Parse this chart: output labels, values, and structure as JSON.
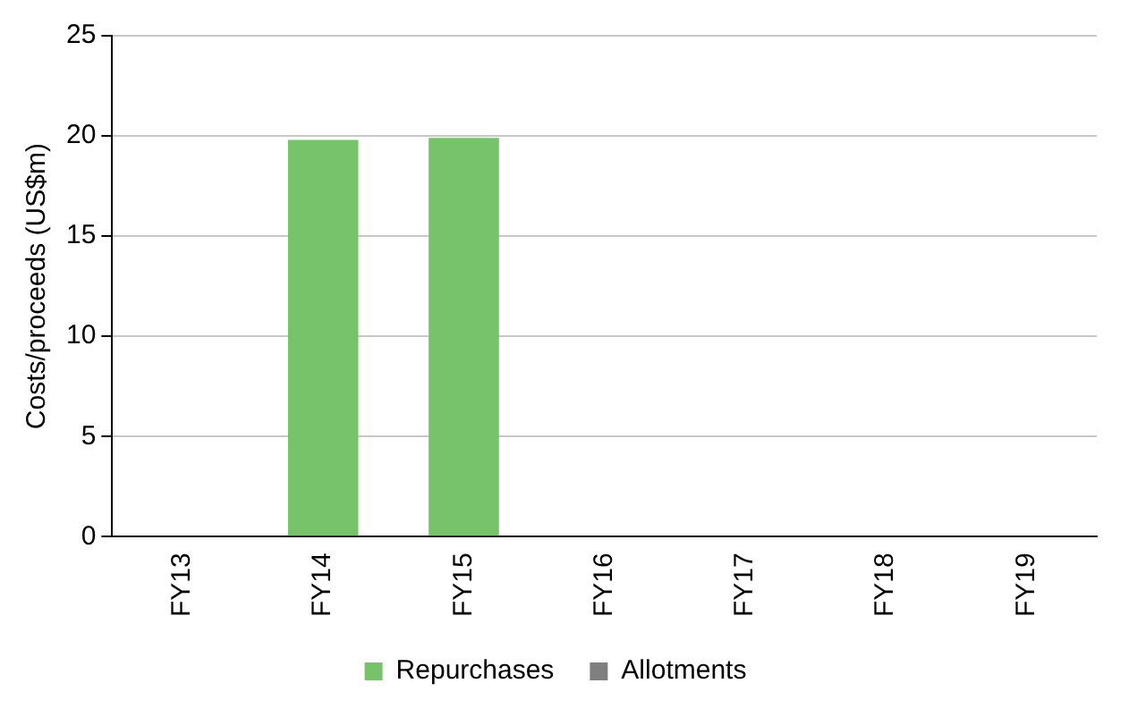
{
  "chart_data": {
    "type": "bar",
    "ylabel": "Costs/proceeds (US$m)",
    "categories": [
      "FY13",
      "FY14",
      "FY15",
      "FY16",
      "FY17",
      "FY18",
      "FY19"
    ],
    "series": [
      {
        "name": "Repurchases",
        "color": "#77c36a",
        "values": [
          0,
          19.8,
          19.9,
          0,
          0,
          0,
          0
        ]
      },
      {
        "name": "Allotments",
        "color": "#7f7f7f",
        "values": [
          0,
          0,
          0,
          0,
          0,
          0,
          0
        ]
      }
    ],
    "ylim": [
      0,
      25
    ],
    "yticks": [
      0,
      5,
      10,
      15,
      20,
      25
    ],
    "grid": "y",
    "legend": "bottom"
  }
}
